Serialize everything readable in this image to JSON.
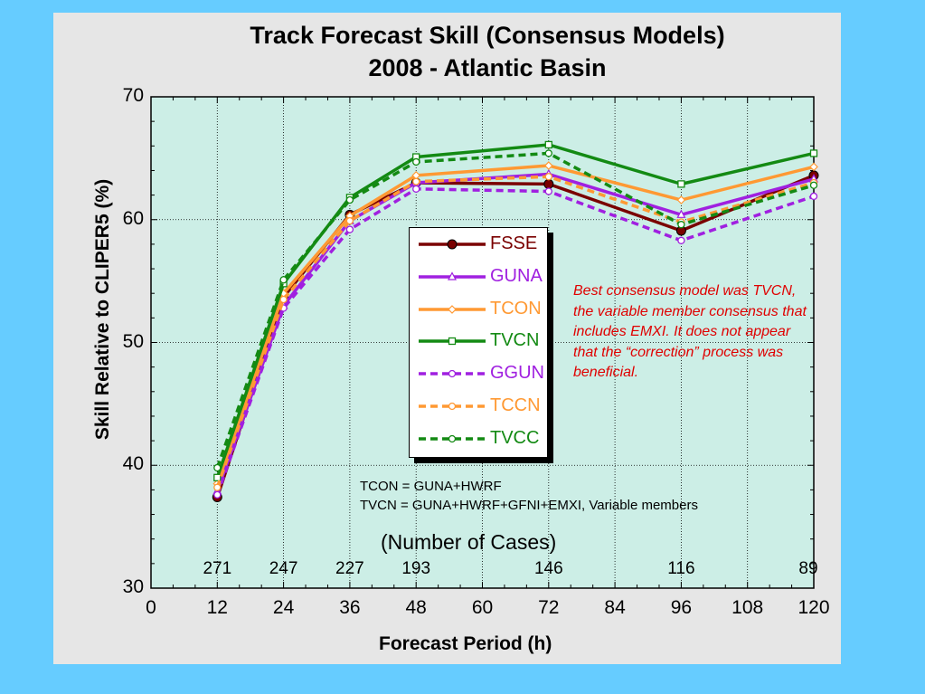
{
  "chart_data": {
    "type": "line",
    "title": "Track Forecast Skill (Consensus Models)",
    "subtitle": "2008 - Atlantic Basin",
    "xlabel": "Forecast Period (h)",
    "ylabel": "Skill Relative to CLIPER5 (%)",
    "xlim": [
      0,
      120
    ],
    "ylim": [
      30,
      70
    ],
    "xticks": [
      0,
      12,
      24,
      36,
      48,
      60,
      72,
      84,
      96,
      108,
      120
    ],
    "yticks": [
      30,
      40,
      50,
      60,
      70
    ],
    "grid": "dotted",
    "legend_position": "center-left",
    "x": [
      12,
      24,
      36,
      48,
      72,
      96,
      120
    ],
    "series": [
      {
        "name": "FSSE",
        "values": [
          37.4,
          53.7,
          60.4,
          63.0,
          62.9,
          59.1,
          63.6
        ],
        "color": "#7a0000",
        "dash": false,
        "marker": "filled-circle"
      },
      {
        "name": "GUNA",
        "values": [
          37.9,
          53.0,
          59.9,
          63.0,
          63.7,
          60.4,
          63.3
        ],
        "color": "#a020e0",
        "dash": false,
        "marker": "triangle"
      },
      {
        "name": "TCON",
        "values": [
          38.5,
          54.0,
          60.3,
          63.6,
          64.4,
          61.6,
          64.3
        ],
        "color": "#ff9933",
        "dash": false,
        "marker": "diamond"
      },
      {
        "name": "TVCN",
        "values": [
          39.0,
          54.8,
          61.8,
          65.1,
          66.1,
          62.9,
          65.4
        ],
        "color": "#138a13",
        "dash": false,
        "marker": "square"
      },
      {
        "name": "GGUN",
        "values": [
          37.6,
          52.8,
          59.2,
          62.5,
          62.3,
          58.3,
          61.9
        ],
        "color": "#a020e0",
        "dash": true,
        "marker": "open-circle"
      },
      {
        "name": "TCCN",
        "values": [
          38.2,
          53.5,
          59.9,
          63.1,
          63.5,
          59.8,
          63.0
        ],
        "color": "#ff9933",
        "dash": true,
        "marker": "open-circle"
      },
      {
        "name": "TVCC",
        "values": [
          39.8,
          55.1,
          61.6,
          64.7,
          65.4,
          59.6,
          62.8
        ],
        "color": "#138a13",
        "dash": true,
        "marker": "open-circle"
      }
    ],
    "number_of_cases_label": "(Number of Cases)",
    "number_of_cases": [
      {
        "x": 12,
        "n": "271"
      },
      {
        "x": 24,
        "n": "247"
      },
      {
        "x": 36,
        "n": "227"
      },
      {
        "x": 48,
        "n": "193"
      },
      {
        "x": 72,
        "n": "146"
      },
      {
        "x": 96,
        "n": "116"
      },
      {
        "x": 120,
        "n": "89"
      }
    ],
    "notes": [
      "TCON = GUNA+HWRF",
      "TVCN = GUNA+HWRF+GFNI+EMXI, Variable members"
    ],
    "annotation": "Best consensus model was TVCN, the variable member consensus that includes EMXI. It does not appear that the “correction” process was beneficial.",
    "annotation_color": "#e00000",
    "plot_background": "#cceee6",
    "page_background": "#66ccff",
    "panel_background": "#e6e6e6"
  }
}
